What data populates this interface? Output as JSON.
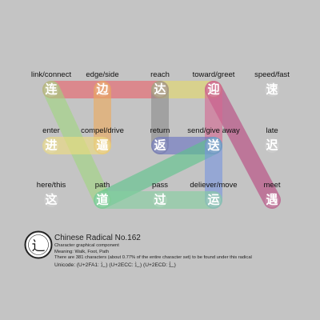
{
  "radical": {
    "glyph": "辶",
    "title": "Chinese Radical No.162",
    "subtitle": "Character graphical component",
    "meaning": "Meaning: Walk, Foot, Path",
    "count_note": "There are 381 characters (about 0.77% of the entire character set) to be found under this radical",
    "unicode": "Unicode: (U+2FA1: 辶)   (U+2ECC: ⻌)   (U+2ECD: ⻍)"
  },
  "nodes": [
    {
      "id": "lian",
      "label": "link/connect",
      "char": "连",
      "char_color": "#ffffff"
    },
    {
      "id": "bian",
      "label": "edge/side",
      "char": "边",
      "char_color": "#ffffff"
    },
    {
      "id": "da",
      "label": "reach",
      "char": "达",
      "char_color": "#ffffff"
    },
    {
      "id": "ying",
      "label": "toward/greet",
      "char": "迎",
      "char_color": "#ffffff"
    },
    {
      "id": "su",
      "label": "speed/fast",
      "char": "速",
      "char_color": "#ffffff"
    },
    {
      "id": "jin",
      "label": "enter",
      "char": "进",
      "char_color": "#ffffff"
    },
    {
      "id": "bi",
      "label": "compel/drive",
      "char": "逼",
      "char_color": "#ffffff"
    },
    {
      "id": "fan",
      "label": "return",
      "char": "返",
      "char_color": "#ffffff"
    },
    {
      "id": "song",
      "label": "send/give away",
      "char": "送",
      "char_color": "#ffffff"
    },
    {
      "id": "chi",
      "label": "late",
      "char": "迟",
      "char_color": "#ffffff"
    },
    {
      "id": "zhe",
      "label": "here/this",
      "char": "这",
      "char_color": "#ffffff"
    },
    {
      "id": "dao",
      "label": "path",
      "char": "道",
      "char_color": "#ffffff"
    },
    {
      "id": "guo",
      "label": "pass",
      "char": "过",
      "char_color": "#ffffff"
    },
    {
      "id": "yun",
      "label": "deliever/move",
      "char": "运",
      "char_color": "#ffffff"
    },
    {
      "id": "yu",
      "label": "meet",
      "char": "遇",
      "char_color": "#ffffff"
    }
  ],
  "links": [
    {
      "from": "lian",
      "to": "da",
      "color": "#e8636b"
    },
    {
      "from": "da",
      "to": "ying",
      "color": "#e3d96a"
    },
    {
      "from": "ying",
      "to": "yu",
      "color": "#b8457e"
    },
    {
      "from": "ying",
      "to": "song",
      "color": "#d46891"
    },
    {
      "from": "da",
      "to": "fan",
      "color": "#8a8a8a"
    },
    {
      "from": "lian",
      "to": "dao",
      "color": "#9fd57f"
    },
    {
      "from": "bian",
      "to": "bi",
      "color": "#eba95c"
    },
    {
      "from": "jin",
      "to": "bi",
      "color": "#eedb7e"
    },
    {
      "from": "fan",
      "to": "song",
      "color": "#6973c2"
    },
    {
      "from": "dao",
      "to": "song",
      "color": "#5cc38b"
    },
    {
      "from": "song",
      "to": "yun",
      "color": "#7794dd"
    },
    {
      "from": "dao",
      "to": "yun",
      "color": "#84cfa0"
    }
  ]
}
